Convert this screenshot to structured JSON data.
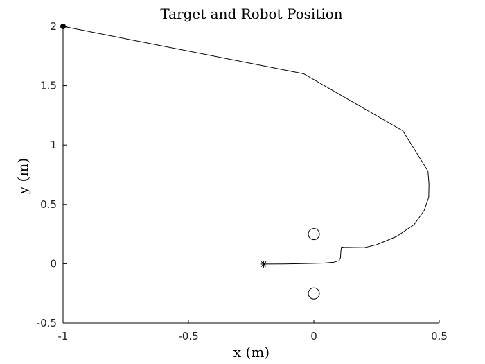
{
  "chart_data": {
    "type": "line",
    "title": "Target and Robot Position",
    "xlabel": "x (m)",
    "ylabel": "y (m)",
    "xlim": [
      -1,
      0.5
    ],
    "ylim": [
      -0.5,
      2
    ],
    "xticks": [
      -1,
      -0.5,
      0,
      0.5
    ],
    "yticks": [
      -0.5,
      0,
      0.5,
      1,
      1.5,
      2
    ],
    "xtick_labels": [
      "-1",
      "-0.5",
      "0",
      "0.5"
    ],
    "ytick_labels": [
      "-0.5",
      "0",
      "0.5",
      "1",
      "1.5",
      "2"
    ],
    "grid": false,
    "series": [
      {
        "kind": "trajectory",
        "color": "#000000",
        "x": [
          -1.0,
          -0.04,
          0.355,
          0.455,
          0.459,
          0.458,
          0.44,
          0.4,
          0.33,
          0.25,
          0.2,
          0.12,
          0.11,
          0.108,
          0.106,
          0.1,
          0.08,
          0.04,
          0.0,
          -0.06,
          -0.12,
          -0.2
        ],
        "y": [
          2.0,
          1.6,
          1.12,
          0.78,
          0.67,
          0.56,
          0.45,
          0.33,
          0.23,
          0.16,
          0.135,
          0.138,
          0.14,
          0.11,
          0.05,
          0.025,
          0.012,
          0.005,
          0.003,
          0.0,
          -0.002,
          -0.003
        ]
      }
    ],
    "markers": [
      {
        "name": "start",
        "symbol": "filled-circle",
        "x": -1.0,
        "y": 2.0
      },
      {
        "name": "end",
        "symbol": "asterisk",
        "x": -0.2,
        "y": -0.003
      },
      {
        "name": "target-1",
        "symbol": "open-circle",
        "x": 0.0,
        "y": 0.25
      },
      {
        "name": "target-2",
        "symbol": "open-circle",
        "x": 0.0,
        "y": -0.25
      }
    ]
  }
}
